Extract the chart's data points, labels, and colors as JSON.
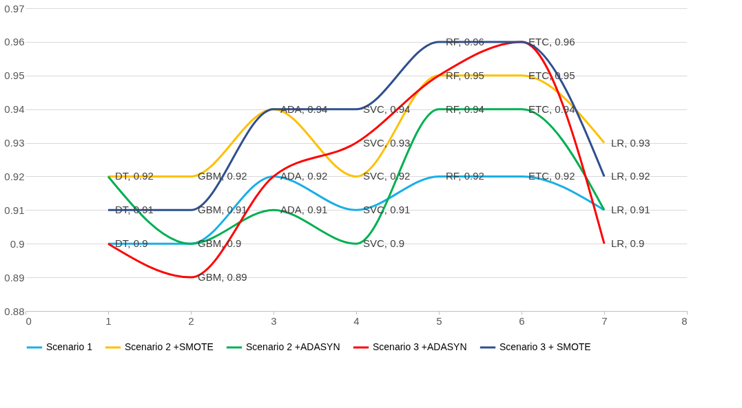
{
  "chart_data": {
    "type": "line",
    "x": [
      1,
      2,
      3,
      4,
      5,
      6,
      7
    ],
    "xlim": [
      0,
      8
    ],
    "xticks": [
      0,
      1,
      2,
      3,
      4,
      5,
      6,
      7,
      8
    ],
    "ylim": [
      0.88,
      0.97
    ],
    "yticks": [
      0.88,
      0.89,
      0.9,
      0.91,
      0.92,
      0.93,
      0.94,
      0.95,
      0.96,
      0.97
    ],
    "grid": "y",
    "legend": "bottom",
    "marker": "none",
    "line_style": "solid",
    "series": [
      {
        "name": "Scenario 1",
        "color": "#1aafe6",
        "values": [
          0.9,
          0.9,
          0.92,
          0.91,
          0.92,
          0.92,
          0.91
        ],
        "value_labels": [
          "DT, 0.9",
          "GBM, 0.9",
          "ADA, 0.92",
          "SVC, 0.91",
          "RF, 0.92",
          "ETC, 0.92",
          "LR, 0.91"
        ]
      },
      {
        "name": "Scenario 2 +SMOTE",
        "color": "#ffc000",
        "values": [
          0.92,
          0.92,
          0.94,
          0.92,
          0.95,
          0.95,
          0.93
        ],
        "value_labels": [
          "DT, 0.92",
          "GBM, 0.92",
          "ADA, 0.94",
          "SVC, 0.92",
          "RF, 0.95",
          "ETC, 0.95",
          "LR, 0.93"
        ]
      },
      {
        "name": "Scenario 2 +ADASYN",
        "color": "#00b050",
        "values": [
          0.92,
          0.9,
          0.91,
          0.9,
          0.94,
          0.94,
          0.91
        ],
        "value_labels": [
          null,
          null,
          "ADA, 0.91",
          "SVC, 0.9",
          "RF, 0.94",
          "ETC, 0.94",
          null
        ]
      },
      {
        "name": "Scenario 3 +ADASYN",
        "color": "#ff0000",
        "values": [
          0.9,
          0.89,
          0.92,
          0.93,
          0.95,
          0.96,
          0.9
        ],
        "value_labels": [
          null,
          "GBM, 0.89",
          null,
          "SVC, 0.93",
          null,
          "ETC, 0.96",
          "LR, 0.9"
        ]
      },
      {
        "name": "Scenario 3 + SMOTE",
        "color": "#2f4f8f",
        "values": [
          0.91,
          0.91,
          0.94,
          0.94,
          0.96,
          0.96,
          0.92
        ],
        "value_labels": [
          "DT, 0.91",
          "GBM, 0.91",
          null,
          "SVC, 0.94",
          "RF, 0.96",
          null,
          "LR, 0.92"
        ]
      }
    ]
  }
}
